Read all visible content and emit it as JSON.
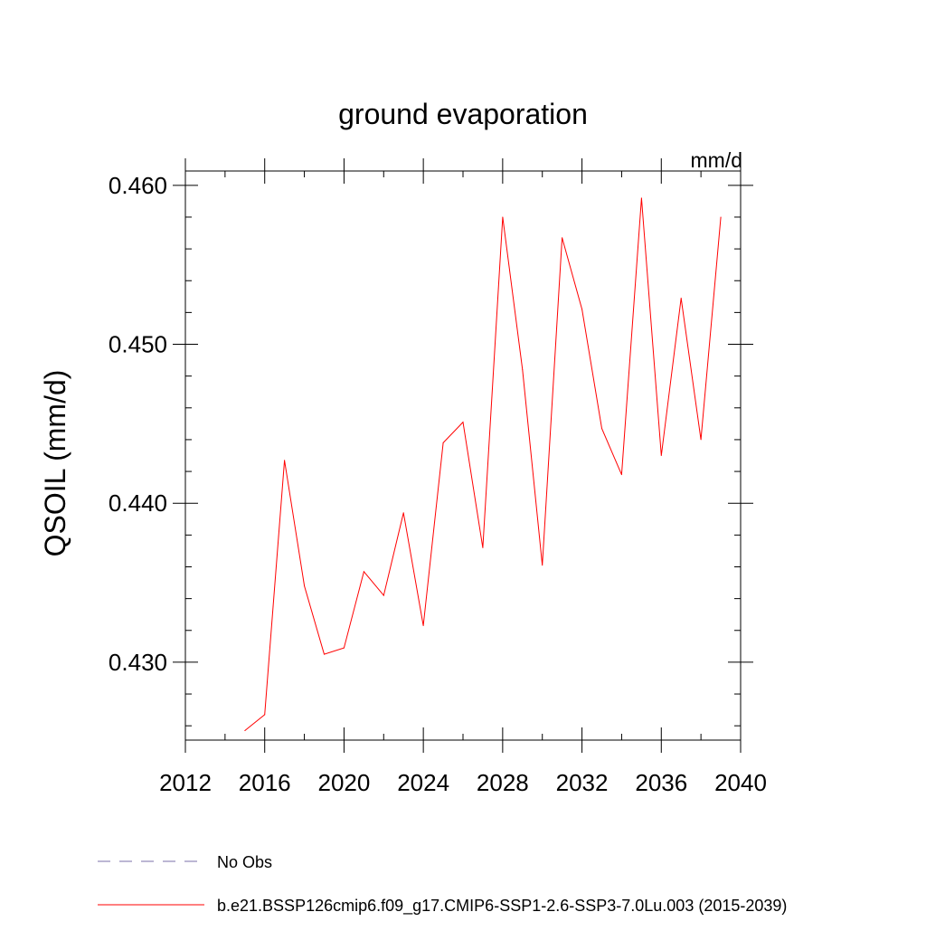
{
  "chart_data": {
    "type": "line",
    "title": "ground evaporation",
    "units_label": "mm/d",
    "xlabel": "",
    "ylabel": "QSOIL  (mm/d)",
    "xlim": [
      2012,
      2040
    ],
    "ylim": [
      0.4251,
      0.4609
    ],
    "x_ticks": [
      2012,
      2016,
      2020,
      2024,
      2028,
      2032,
      2036,
      2040
    ],
    "y_ticks": [
      0.43,
      0.44,
      0.45,
      0.46
    ],
    "y_tick_labels": [
      "0.430",
      "0.440",
      "0.450",
      "0.460"
    ],
    "series": [
      {
        "name": "b.e21.BSSP126cmip6.f09_g17.CMIP6-SSP1-2.6-SSP3-7.0Lu.003 (2015-2039)",
        "color": "#ff0000",
        "style": "solid",
        "x": [
          2015,
          2016,
          2017,
          2018,
          2019,
          2020,
          2021,
          2022,
          2023,
          2024,
          2025,
          2026,
          2027,
          2028,
          2029,
          2030,
          2031,
          2032,
          2033,
          2034,
          2035,
          2036,
          2037,
          2038,
          2039
        ],
        "values": [
          0.4257,
          0.4267,
          0.4427,
          0.4348,
          0.4305,
          0.4309,
          0.4357,
          0.4342,
          0.4394,
          0.4323,
          0.4438,
          0.4451,
          0.4372,
          0.458,
          0.4484,
          0.4361,
          0.4567,
          0.4522,
          0.4447,
          0.4418,
          0.4592,
          0.443,
          0.4529,
          0.444,
          0.458
        ]
      }
    ],
    "legend": [
      {
        "label": "No Obs",
        "color": "#7a6fa8",
        "style": "dashed"
      },
      {
        "label": "b.e21.BSSP126cmip6.f09_g17.CMIP6-SSP1-2.6-SSP3-7.0Lu.003 (2015-2039)",
        "color": "#ff0000",
        "style": "solid"
      }
    ],
    "legend_position": "bottom"
  }
}
